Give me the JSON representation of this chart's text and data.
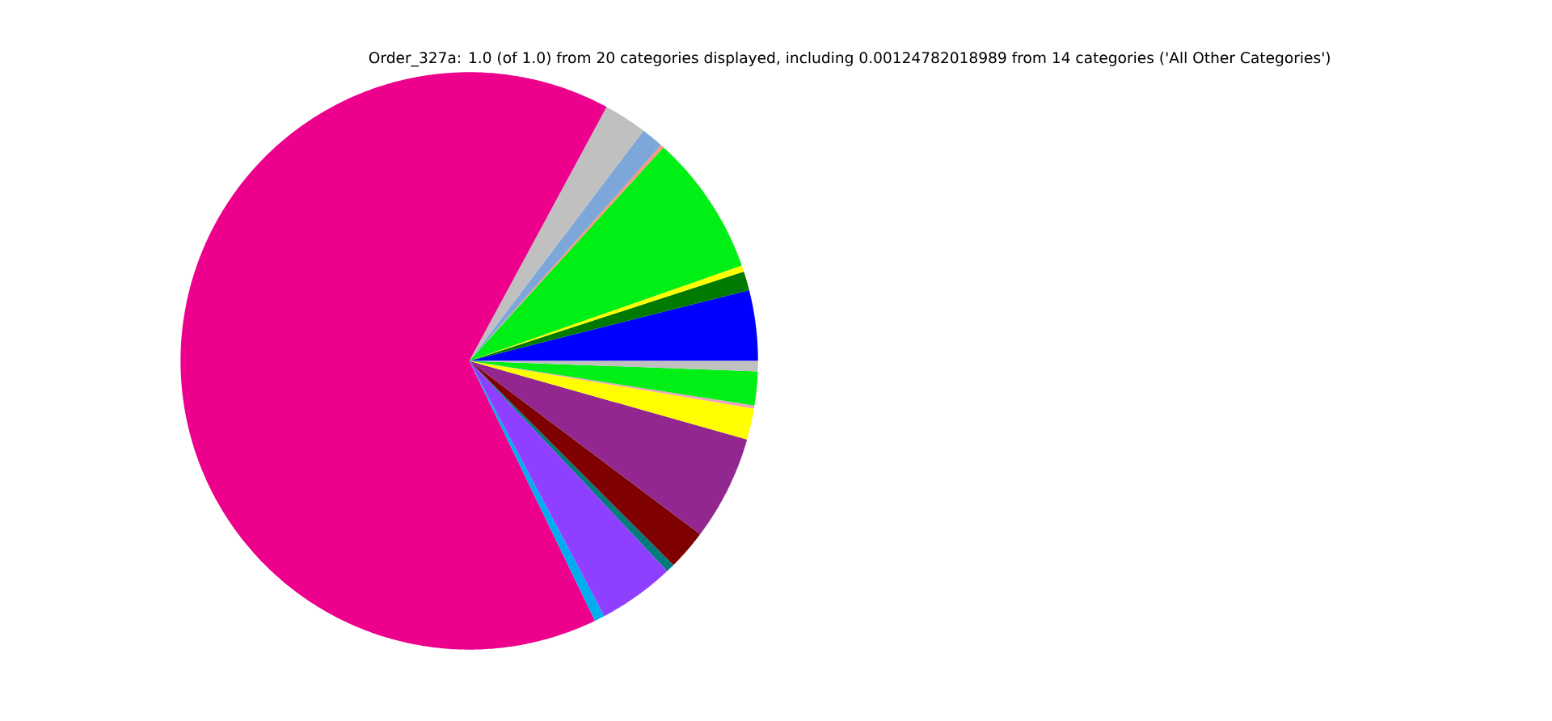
{
  "chart_data": {
    "type": "pie",
    "title": "Order_327a: 1.0 (of 1.0) from 20 categories displayed, including 0.00124782018989 from 14 categories ('All Other Categories')",
    "categories": [
      null,
      null,
      null,
      null,
      null,
      null,
      null,
      null,
      null,
      null,
      null,
      null,
      null,
      null,
      null,
      null,
      null
    ],
    "values": [
      3.94,
      1.06,
      0.36,
      7.89,
      0.19,
      1.25,
      2.42,
      65.06,
      0.58,
      4.28,
      0.47,
      2.25,
      5.86,
      1.75,
      0.17,
      1.89,
      0.58
    ],
    "colors": [
      "#0000ff",
      "#007a00",
      "#ffff00",
      "#00f015",
      "#f49a7c",
      "#7da7d9",
      "#c0c0c0",
      "#ec008c",
      "#00aeef",
      "#8f3fff",
      "#007b7b",
      "#7f0000",
      "#92278f",
      "#ffff00",
      "#f0a0c0",
      "#00f015",
      "#c0c0c0"
    ]
  }
}
